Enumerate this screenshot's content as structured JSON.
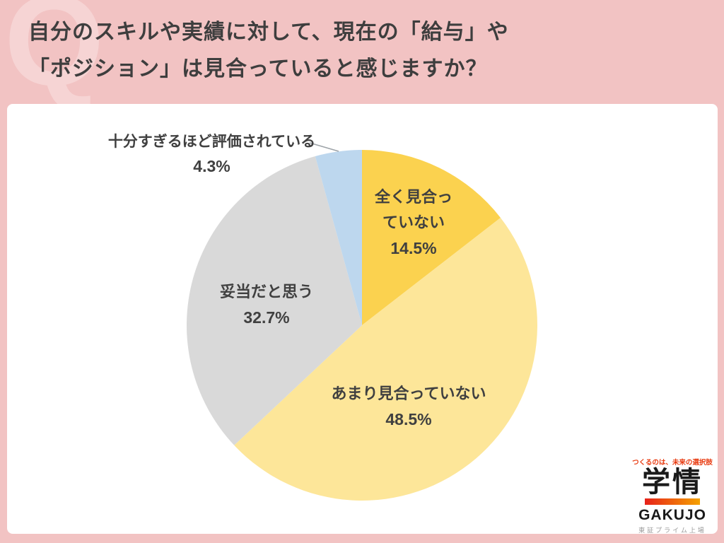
{
  "watermark": {
    "letter": "Q"
  },
  "header": {
    "title_line1": "自分のスキルや実績に対して、現在の「給与」や",
    "title_line2": "「ポジション」は見合っていると感じますか？"
  },
  "chart_data": {
    "type": "pie",
    "title": "自分のスキルや実績に対して、現在の「給与」や「ポジション」は見合っていると感じますか？",
    "start_angle_deg": 0,
    "direction": "clockwise",
    "legend": "none",
    "slices": [
      {
        "label": "全く見合っていない",
        "value_pct": 14.5,
        "pct_text": "14.5%",
        "color": "#FBD24F",
        "label_lines": [
          "全く見合っ",
          "ていない"
        ],
        "label_placement": "inside"
      },
      {
        "label": "あまり見合っていない",
        "value_pct": 48.5,
        "pct_text": "48.5%",
        "color": "#FDE699",
        "label_lines": [
          "あまり見合っていない"
        ],
        "label_placement": "inside"
      },
      {
        "label": "妥当だと思う",
        "value_pct": 32.7,
        "pct_text": "32.7%",
        "color": "#D9D9D9",
        "label_lines": [
          "妥当だと思う"
        ],
        "label_placement": "inside"
      },
      {
        "label": "十分すぎるほど評価されている",
        "value_pct": 4.3,
        "pct_text": "4.3%",
        "color": "#BDD7EE",
        "label_lines": [
          "十分すぎるほど評価されている"
        ],
        "label_placement": "outside-leader-line"
      }
    ]
  },
  "logo": {
    "tagline": "つくるのは、未来の選択肢",
    "name_kanji": "学情",
    "name_roman": "GAKUJO",
    "listing": "東証プライム上場",
    "colors": {
      "tagline": "#E8380D",
      "bar_left": "#E7211A",
      "bar_right": "#F5A200"
    }
  },
  "palette": {
    "background_pink": "#F2C3C3",
    "watermark_pink": "#F6D4D4",
    "panel_white": "#FFFFFF",
    "title_text": "#3E3E3E",
    "label_text": "#404040",
    "leader_line": "#9DA3A8"
  }
}
